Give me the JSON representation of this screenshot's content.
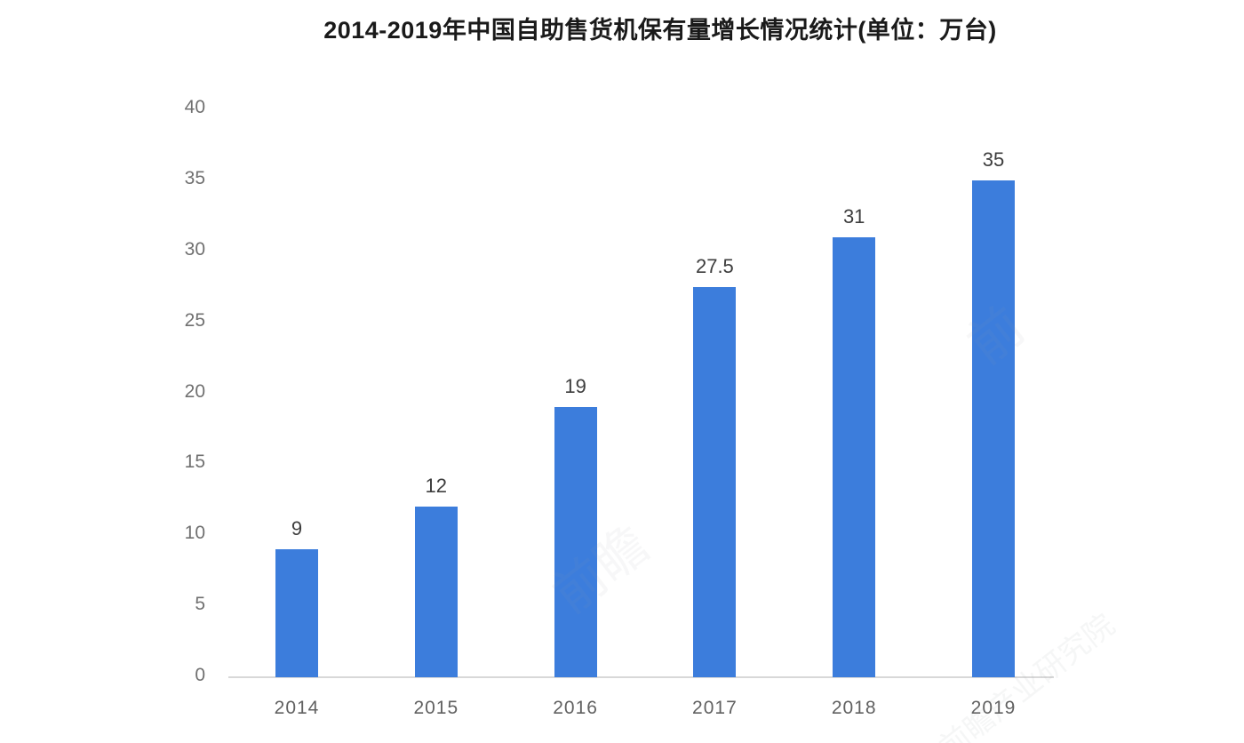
{
  "chart_data": {
    "type": "bar",
    "title": "2014-2019年中国自助售货机保有量增长情况统计(单位：万台)",
    "categories": [
      "2014",
      "2015",
      "2016",
      "2017",
      "2018",
      "2019"
    ],
    "values": [
      9,
      12,
      19,
      27.5,
      31,
      35
    ],
    "value_labels": [
      "9",
      "12",
      "19",
      "27.5",
      "31",
      "35"
    ],
    "xlabel": "",
    "ylabel": "",
    "ylim": [
      0,
      40
    ],
    "yticks": [
      0,
      5,
      10,
      15,
      20,
      25,
      30,
      35,
      40
    ],
    "grid": false,
    "legend": false,
    "bar_color": "#3c7ddc",
    "axis_line_color": "#d8d8d8",
    "value_label_color": "#3d3d3d",
    "tick_label_color": "#6e6e6e"
  },
  "watermarks": [
    {
      "text": "前瞻"
    },
    {
      "text": "前"
    },
    {
      "text": "前瞻产业研究院"
    }
  ]
}
